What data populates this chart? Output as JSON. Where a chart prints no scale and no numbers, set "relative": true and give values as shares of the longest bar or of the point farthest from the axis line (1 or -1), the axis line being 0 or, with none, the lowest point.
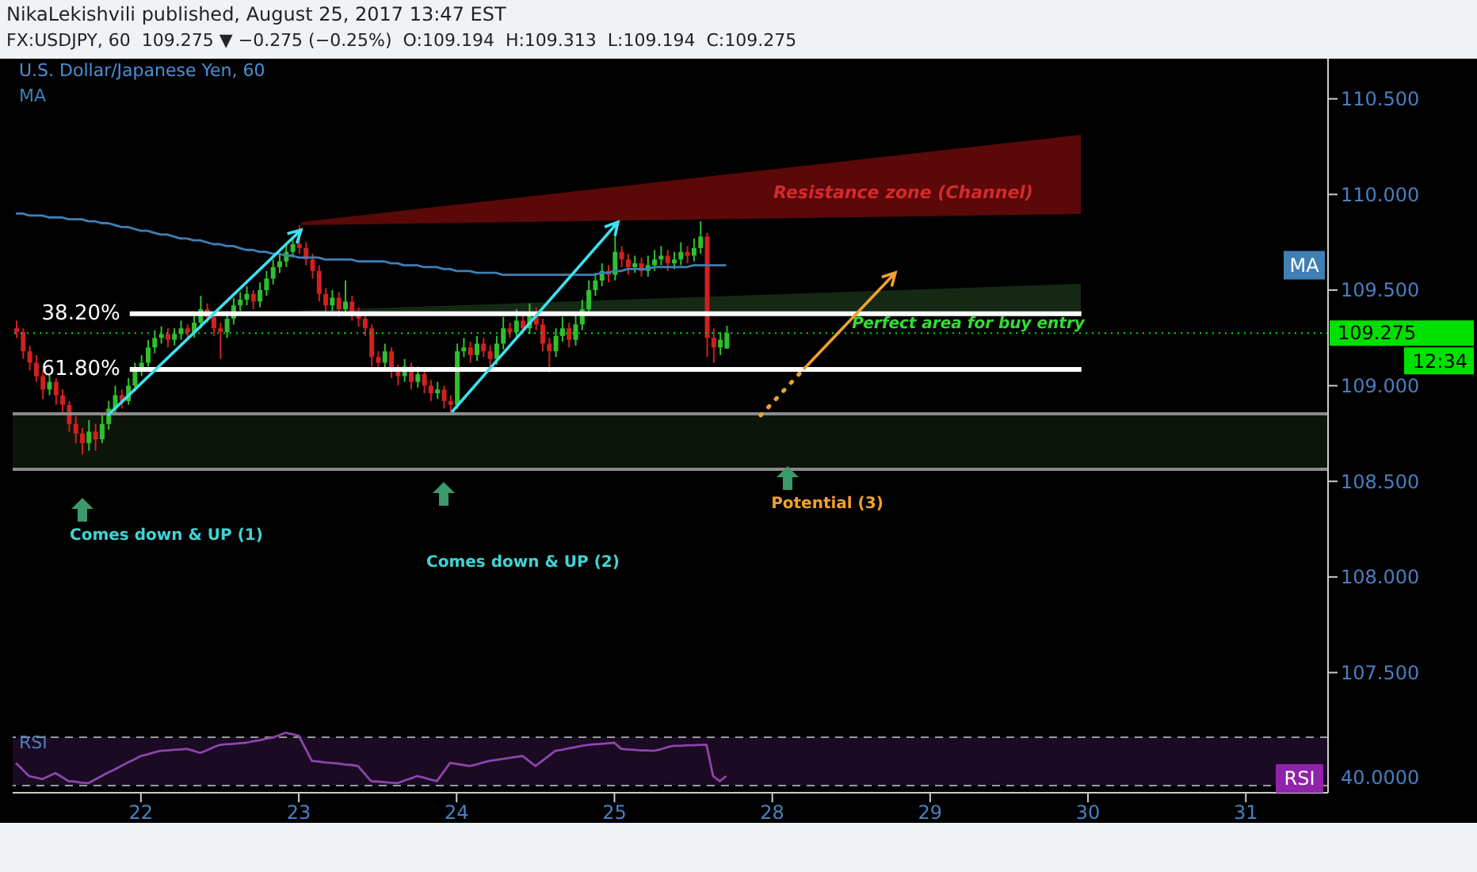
{
  "chart_data": [
    {
      "type": "candlestick",
      "title": "NikaLekishvili published, August 25, 2017 13:47 EST",
      "subtitle": "FX:USDJPY, 60  109.275 ▼ −0.275 (−0.25%)  O:109.194  H:109.313  L:109.194  C:109.275",
      "categories": [
        null,
        null,
        null,
        null,
        null,
        null,
        null,
        null,
        null,
        null,
        null,
        null,
        null,
        null,
        null,
        null,
        null,
        null,
        null,
        "22",
        null,
        null,
        null,
        null,
        null,
        null,
        null,
        null,
        null,
        null,
        null,
        null,
        null,
        null,
        null,
        null,
        null,
        null,
        null,
        null,
        null,
        null,
        null,
        "23",
        null,
        null,
        null,
        null,
        null,
        null,
        null,
        null,
        null,
        null,
        null,
        null,
        null,
        null,
        null,
        null,
        null,
        null,
        null,
        null,
        null,
        null,
        null,
        "24",
        null,
        null,
        null,
        null,
        null,
        null,
        null,
        null,
        null,
        null,
        null,
        null,
        null,
        null,
        null,
        null,
        null,
        null,
        null,
        null,
        null,
        null,
        null,
        "25",
        null,
        null,
        null,
        null,
        null,
        null,
        null,
        null,
        null,
        null,
        null,
        null,
        null,
        null,
        null,
        null,
        null,
        null,
        null,
        null,
        null,
        null,
        null,
        "28",
        null,
        null,
        null,
        null,
        null,
        null,
        null,
        null,
        null,
        null,
        null,
        null,
        null,
        null,
        null,
        null,
        null,
        null,
        null,
        null,
        null,
        null,
        null,
        "29",
        null,
        null,
        null,
        null,
        null,
        null,
        null,
        null,
        null,
        null,
        null,
        null,
        null,
        null,
        null,
        null,
        null,
        null,
        null,
        null,
        null,
        null,
        null,
        "30",
        null,
        null,
        null,
        null,
        null,
        null,
        null,
        null,
        null,
        null,
        null,
        null,
        null,
        null,
        null,
        null,
        null,
        null,
        null,
        null,
        null,
        null,
        null,
        "31",
        null,
        null,
        null,
        null,
        null,
        null,
        null,
        null,
        null,
        null,
        null,
        null
      ],
      "ohlc": [
        [
          109.3,
          109.34,
          109.25,
          109.28
        ],
        [
          109.28,
          109.3,
          109.14,
          109.18
        ],
        [
          109.18,
          109.21,
          109.08,
          109.12
        ],
        [
          109.12,
          109.16,
          109.02,
          109.05
        ],
        [
          109.05,
          109.08,
          108.93,
          108.98
        ],
        [
          108.98,
          109.06,
          108.95,
          109.02
        ],
        [
          109.02,
          109.04,
          108.9,
          108.95
        ],
        [
          108.95,
          108.98,
          108.86,
          108.9
        ],
        [
          108.9,
          108.92,
          108.76,
          108.8
        ],
        [
          108.8,
          108.84,
          108.7,
          108.75
        ],
        [
          108.75,
          108.78,
          108.64,
          108.7
        ],
        [
          108.7,
          108.82,
          108.66,
          108.76
        ],
        [
          108.76,
          108.8,
          108.66,
          108.72
        ],
        [
          108.72,
          108.85,
          108.7,
          108.8
        ],
        [
          108.8,
          108.92,
          108.77,
          108.88
        ],
        [
          108.88,
          109.0,
          108.85,
          108.95
        ],
        [
          108.95,
          108.98,
          108.88,
          108.92
        ],
        [
          108.92,
          109.04,
          108.9,
          109.0
        ],
        [
          109.0,
          109.12,
          108.97,
          109.08
        ],
        [
          109.08,
          109.16,
          109.05,
          109.12
        ],
        [
          109.12,
          109.24,
          109.1,
          109.2
        ],
        [
          109.2,
          109.29,
          109.17,
          109.25
        ],
        [
          109.25,
          109.31,
          109.22,
          109.27
        ],
        [
          109.27,
          109.3,
          109.2,
          109.24
        ],
        [
          109.24,
          109.3,
          109.21,
          109.27
        ],
        [
          109.27,
          109.34,
          109.24,
          109.3
        ],
        [
          109.3,
          109.32,
          109.24,
          109.28
        ],
        [
          109.28,
          109.37,
          109.25,
          109.33
        ],
        [
          109.33,
          109.47,
          109.3,
          109.4
        ],
        [
          109.4,
          109.43,
          109.33,
          109.36
        ],
        [
          109.36,
          109.38,
          109.26,
          109.3
        ],
        [
          109.3,
          109.33,
          109.14,
          109.28
        ],
        [
          109.28,
          109.39,
          109.25,
          109.35
        ],
        [
          109.35,
          109.46,
          109.32,
          109.42
        ],
        [
          109.42,
          109.49,
          109.39,
          109.45
        ],
        [
          109.45,
          109.52,
          109.42,
          109.48
        ],
        [
          109.48,
          109.5,
          109.4,
          109.44
        ],
        [
          109.44,
          109.54,
          109.41,
          109.5
        ],
        [
          109.5,
          109.6,
          109.47,
          109.56
        ],
        [
          109.56,
          109.66,
          109.53,
          109.62
        ],
        [
          109.62,
          109.69,
          109.59,
          109.65
        ],
        [
          109.65,
          109.74,
          109.62,
          109.7
        ],
        [
          109.7,
          109.78,
          109.67,
          109.74
        ],
        [
          109.74,
          109.84,
          109.69,
          109.72
        ],
        [
          109.72,
          109.75,
          109.63,
          109.66
        ],
        [
          109.66,
          109.69,
          109.56,
          109.6
        ],
        [
          109.6,
          109.63,
          109.44,
          109.48
        ],
        [
          109.48,
          109.51,
          109.38,
          109.42
        ],
        [
          109.42,
          109.5,
          109.39,
          109.46
        ],
        [
          109.46,
          109.49,
          109.36,
          109.4
        ],
        [
          109.4,
          109.55,
          109.37,
          109.44
        ],
        [
          109.44,
          109.47,
          109.34,
          109.38
        ],
        [
          109.38,
          109.41,
          109.31,
          109.35
        ],
        [
          109.35,
          109.38,
          109.26,
          109.3
        ],
        [
          109.3,
          109.32,
          109.1,
          109.15
        ],
        [
          109.15,
          109.18,
          109.08,
          109.12
        ],
        [
          109.12,
          109.22,
          109.09,
          109.18
        ],
        [
          109.18,
          109.2,
          109.04,
          109.08
        ],
        [
          109.08,
          109.11,
          109.0,
          109.05
        ],
        [
          109.05,
          109.14,
          109.02,
          109.1
        ],
        [
          109.1,
          109.12,
          108.98,
          109.02
        ],
        [
          109.02,
          109.1,
          108.99,
          109.06
        ],
        [
          109.06,
          109.08,
          108.96,
          109.0
        ],
        [
          109.0,
          109.03,
          108.92,
          108.96
        ],
        [
          108.96,
          109.02,
          108.93,
          108.98
        ],
        [
          108.98,
          109.0,
          108.88,
          108.92
        ],
        [
          108.92,
          108.95,
          108.86,
          108.9
        ],
        [
          108.9,
          109.22,
          108.88,
          109.18
        ],
        [
          109.18,
          109.25,
          109.15,
          109.2
        ],
        [
          109.2,
          109.23,
          109.12,
          109.16
        ],
        [
          109.16,
          109.26,
          109.13,
          109.22
        ],
        [
          109.22,
          109.25,
          109.15,
          109.18
        ],
        [
          109.18,
          109.21,
          109.1,
          109.14
        ],
        [
          109.14,
          109.26,
          109.11,
          109.22
        ],
        [
          109.22,
          109.36,
          109.19,
          109.3
        ],
        [
          109.3,
          109.33,
          109.25,
          109.28
        ],
        [
          109.28,
          109.4,
          109.25,
          109.34
        ],
        [
          109.34,
          109.37,
          109.27,
          109.3
        ],
        [
          109.3,
          109.43,
          109.27,
          109.38
        ],
        [
          109.38,
          109.41,
          109.29,
          109.32
        ],
        [
          109.32,
          109.35,
          109.18,
          109.22
        ],
        [
          109.22,
          109.25,
          109.07,
          109.18
        ],
        [
          109.18,
          109.3,
          109.15,
          109.26
        ],
        [
          109.26,
          109.36,
          109.23,
          109.3
        ],
        [
          109.3,
          109.33,
          109.2,
          109.24
        ],
        [
          109.24,
          109.38,
          109.21,
          109.32
        ],
        [
          109.32,
          109.45,
          109.29,
          109.4
        ],
        [
          109.4,
          109.55,
          109.37,
          109.5
        ],
        [
          109.5,
          109.59,
          109.47,
          109.55
        ],
        [
          109.55,
          109.64,
          109.52,
          109.6
        ],
        [
          109.6,
          109.63,
          109.54,
          109.58
        ],
        [
          109.58,
          109.79,
          109.55,
          109.7
        ],
        [
          109.7,
          109.73,
          109.62,
          109.66
        ],
        [
          109.66,
          109.69,
          109.58,
          109.62
        ],
        [
          109.62,
          109.68,
          109.59,
          109.64
        ],
        [
          109.64,
          109.67,
          109.57,
          109.6
        ],
        [
          109.6,
          109.68,
          109.57,
          109.63
        ],
        [
          109.63,
          109.71,
          109.6,
          109.66
        ],
        [
          109.66,
          109.73,
          109.63,
          109.68
        ],
        [
          109.68,
          109.71,
          109.6,
          109.64
        ],
        [
          109.64,
          109.7,
          109.61,
          109.66
        ],
        [
          109.66,
          109.75,
          109.63,
          109.7
        ],
        [
          109.7,
          109.73,
          109.64,
          109.68
        ],
        [
          109.68,
          109.77,
          109.65,
          109.72
        ],
        [
          109.72,
          109.86,
          109.69,
          109.78
        ],
        [
          109.78,
          109.8,
          109.15,
          109.25
        ],
        [
          109.25,
          109.3,
          109.12,
          109.2
        ],
        [
          109.2,
          109.28,
          109.16,
          109.24
        ],
        [
          109.194,
          109.313,
          109.194,
          109.275
        ],
        null,
        null,
        null,
        null,
        null,
        null,
        null,
        null,
        null,
        null,
        null,
        null,
        null,
        null,
        null,
        null,
        null,
        null,
        null,
        null,
        null,
        null,
        null,
        null,
        null,
        null,
        null,
        null,
        null,
        null,
        null,
        null,
        null,
        null,
        null,
        null,
        null,
        null,
        null,
        null,
        null,
        null,
        null,
        null,
        null,
        null,
        null,
        null,
        null,
        null,
        null,
        null,
        null,
        null,
        null,
        null,
        null,
        null,
        null,
        null,
        null,
        null,
        null,
        null,
        null,
        null,
        null,
        null,
        null,
        null,
        null,
        null,
        null,
        null,
        null,
        null,
        null,
        null,
        null,
        null,
        null,
        null,
        null,
        null,
        null,
        null,
        null,
        null,
        null,
        null,
        null
      ],
      "series": [
        {
          "type": "line",
          "name": "MA",
          "color": "#3f7fb5",
          "values": [
            109.9,
            109.9,
            109.89,
            109.89,
            109.89,
            109.88,
            109.88,
            109.88,
            109.87,
            109.87,
            109.87,
            109.86,
            109.86,
            109.85,
            109.85,
            109.84,
            109.83,
            109.83,
            109.82,
            109.81,
            109.81,
            109.8,
            109.79,
            109.79,
            109.78,
            109.77,
            109.77,
            109.76,
            109.76,
            109.75,
            109.74,
            109.74,
            109.73,
            109.73,
            109.72,
            109.71,
            109.71,
            109.7,
            109.7,
            109.69,
            109.69,
            109.68,
            109.68,
            109.67,
            109.67,
            109.67,
            109.67,
            109.66,
            109.66,
            109.66,
            109.66,
            109.66,
            109.65,
            109.65,
            109.65,
            109.65,
            109.65,
            109.64,
            109.64,
            109.63,
            109.63,
            109.63,
            109.62,
            109.62,
            109.62,
            109.61,
            109.61,
            109.6,
            109.6,
            109.6,
            109.59,
            109.59,
            109.59,
            109.59,
            109.58,
            109.58,
            109.58,
            109.58,
            109.58,
            109.58,
            109.58,
            109.58,
            109.58,
            109.58,
            109.58,
            109.58,
            109.58,
            109.58,
            109.58,
            109.59,
            109.59,
            109.6,
            109.6,
            109.61,
            109.61,
            109.61,
            109.61,
            109.62,
            109.62,
            109.62,
            109.62,
            109.62,
            109.62,
            109.63,
            109.63,
            109.63,
            109.63,
            109.63,
            109.63,
            null,
            null,
            null,
            null,
            null,
            null,
            null,
            null,
            null,
            null,
            null,
            null,
            null,
            null,
            null,
            null,
            null,
            null,
            null,
            null,
            null,
            null,
            null,
            null,
            null,
            null,
            null,
            null,
            null,
            null,
            null,
            null,
            null,
            null,
            null,
            null,
            null,
            null,
            null,
            null,
            null,
            null,
            null,
            null,
            null,
            null,
            null,
            null,
            null,
            null,
            null,
            null,
            null,
            null,
            null,
            null,
            null,
            null,
            null,
            null,
            null,
            null,
            null,
            null,
            null,
            null,
            null,
            null,
            null,
            null,
            null,
            null,
            null,
            null,
            null,
            null,
            null,
            null,
            null,
            null,
            null,
            null,
            null,
            null,
            null,
            null,
            null,
            null,
            null,
            null,
            null
          ]
        }
      ],
      "ref_lines": [
        {
          "axis": "y",
          "value": 109.376,
          "color": "#ffffff"
        },
        {
          "axis": "y",
          "value": 109.085,
          "color": "#ffffff"
        },
        {
          "axis": "y",
          "value": 108.853,
          "color": "#8a8a8a"
        },
        {
          "axis": "y",
          "value": 108.563,
          "color": "#8a8a8a"
        },
        {
          "axis": "y",
          "value": 109.275,
          "label": "109.275",
          "color": "#00e000",
          "line_style": "dotted"
        }
      ],
      "bands": [
        {
          "axis": "y",
          "from": 108.563,
          "to": 108.853,
          "color": "#0d150a"
        }
      ],
      "annotations": [
        "U.S. Dollar/Japanese Yen, 60",
        "12:34",
        "Resistance zone (Channel)",
        "Perfect area for buy entry",
        "Comes down & UP (1)",
        "Comes down & UP (2)",
        "Potential (3)",
        "38.20%",
        "61.80%"
      ],
      "ylim": [
        107.22,
        110.71
      ],
      "yticks": [
        {
          "value": 107.5,
          "label": "107.500"
        },
        {
          "value": 108,
          "label": "108.000"
        },
        {
          "value": 108.5,
          "label": "108.500"
        },
        {
          "value": 109,
          "label": "109.000"
        },
        {
          "value": 109.5,
          "label": "109.500"
        },
        {
          "value": 110,
          "label": "110.000"
        },
        {
          "value": 110.5,
          "label": "110.500"
        }
      ],
      "tick_labels": "y",
      "legend": "top left"
    },
    {
      "type": "line",
      "title": "RSI",
      "relative": true,
      "categories": [
        null,
        null,
        null,
        null,
        null,
        null,
        null,
        null,
        null,
        null,
        null,
        null,
        null,
        null,
        null,
        null,
        null,
        null,
        null,
        "22",
        null,
        null,
        null,
        null,
        null,
        null,
        null,
        null,
        null,
        null,
        null,
        null,
        null,
        null,
        null,
        null,
        null,
        null,
        null,
        null,
        null,
        null,
        null,
        "23",
        null,
        null,
        null,
        null,
        null,
        null,
        null,
        null,
        null,
        null,
        null,
        null,
        null,
        null,
        null,
        null,
        null,
        null,
        null,
        null,
        null,
        null,
        null,
        "24",
        null,
        null,
        null,
        null,
        null,
        null,
        null,
        null,
        null,
        null,
        null,
        null,
        null,
        null,
        null,
        null,
        null,
        null,
        null,
        null,
        null,
        null,
        null,
        "25",
        null,
        null,
        null,
        null,
        null,
        null,
        null,
        null,
        null,
        null,
        null,
        null,
        null,
        null,
        null,
        null,
        null,
        null,
        null,
        null,
        null,
        null,
        null,
        "28",
        null,
        null,
        null,
        null,
        null,
        null,
        null,
        null,
        null,
        null,
        null,
        null,
        null,
        null,
        null,
        null,
        null,
        null,
        null,
        null,
        null,
        null,
        null,
        "29",
        null,
        null,
        null,
        null,
        null,
        null,
        null,
        null,
        null,
        null,
        null,
        null,
        null,
        null,
        null,
        null,
        null,
        null,
        null,
        null,
        null,
        null,
        null,
        "30",
        null,
        null,
        null,
        null,
        null,
        null,
        null,
        null,
        null,
        null,
        null,
        null,
        null,
        null,
        null,
        null,
        null,
        null,
        null,
        null,
        null,
        null,
        null,
        "31",
        null,
        null,
        null,
        null,
        null,
        null,
        null,
        null,
        null,
        null,
        null,
        null
      ],
      "series": [
        {
          "color": "#8e44ad",
          "values": [
            0.4,
            0.27,
            0.14,
            0.11,
            0.08,
            0.14,
            0.2,
            0.12,
            0.04,
            0.03,
            0.01,
            0,
            0.07,
            0.14,
            0.21,
            0.27,
            0.34,
            0.41,
            0.47,
            0.54,
            0.57,
            0.61,
            0.64,
            0.65,
            0.66,
            0.67,
            0.68,
            0.64,
            0.6,
            0.65,
            0.71,
            0.76,
            0.77,
            0.78,
            0.79,
            0.8,
            0.83,
            0.85,
            0.88,
            0.9,
            0.95,
            1,
            0.97,
            0.94,
            0.69,
            0.44,
            0.43,
            0.41,
            0.4,
            0.39,
            0.37,
            0.36,
            0.34,
            0.19,
            0.04,
            0.03,
            0.02,
            0.01,
            0,
            0.05,
            0.09,
            0.14,
            0.11,
            0.07,
            0.04,
            0.22,
            0.4,
            0.38,
            0.36,
            0.34,
            0.37,
            0.41,
            0.44,
            0.46,
            0.48,
            0.5,
            0.52,
            0.54,
            0.44,
            0.34,
            0.44,
            0.54,
            0.64,
            0.66,
            0.69,
            0.71,
            0.74,
            0.76,
            0.77,
            0.78,
            0.79,
            0.8,
            0.68,
            0.67,
            0.66,
            0.65,
            0.65,
            0.64,
            0.67,
            0.71,
            0.74,
            0.74,
            0.75,
            0.75,
            0.76,
            0.76,
            0.14,
            0.04,
            0.14,
            null,
            null,
            null,
            null,
            null,
            null,
            null,
            null,
            null,
            null,
            null,
            null,
            null,
            null,
            null,
            null,
            null,
            null,
            null,
            null,
            null,
            null,
            null,
            null,
            null,
            null,
            null,
            null,
            null,
            null,
            null,
            null,
            null,
            null,
            null,
            null,
            null,
            null,
            null,
            null,
            null,
            null,
            null,
            null,
            null,
            null,
            null,
            null,
            null,
            null,
            null,
            null,
            null,
            null,
            null,
            null,
            null,
            null,
            null,
            null,
            null,
            null,
            null,
            null,
            null,
            null,
            null,
            null,
            null,
            null,
            null,
            null,
            null,
            null,
            null,
            null,
            null,
            null,
            null,
            null,
            null,
            null,
            null,
            null,
            null,
            null,
            null,
            null,
            null,
            null,
            null
          ]
        }
      ],
      "ref_lines": [
        {
          "axis": "y",
          "value": 0.91,
          "color": "#9a9a9a",
          "line_style": "dashed"
        },
        {
          "axis": "y",
          "value": -0.05,
          "color": "#9a9a9a",
          "line_style": "dashed"
        }
      ],
      "bands": [
        {
          "axis": "y",
          "from": -0.05,
          "to": 0.91,
          "color": "#1a0a22"
        }
      ],
      "annotations": [
        "40.0000"
      ],
      "tick_labels": "x"
    }
  ]
}
